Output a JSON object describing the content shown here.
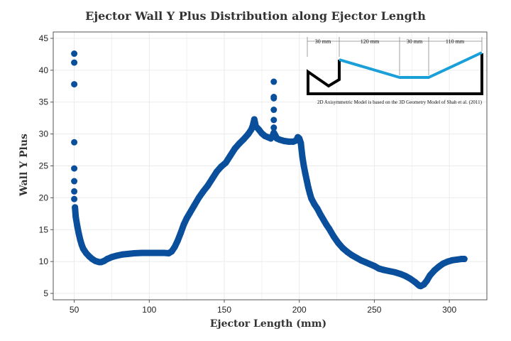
{
  "chart_data": {
    "type": "scatter",
    "title": "Ejector Wall Y Plus Distribution along Ejector Length",
    "xlabel": "Ejector Length (mm)",
    "ylabel": "Wall Y Plus",
    "xlim": [
      36,
      325
    ],
    "ylim": [
      4,
      46
    ],
    "xticks": [
      50,
      100,
      150,
      200,
      250,
      300
    ],
    "yticks": [
      5,
      10,
      15,
      20,
      25,
      30,
      35,
      40,
      45
    ],
    "grid": true,
    "marker_color": "#0a4f9c",
    "series": [
      {
        "points": [
          [
            50,
            42.6
          ],
          [
            50,
            41.2
          ],
          [
            50,
            37.8
          ],
          [
            50,
            28.7
          ],
          [
            50,
            24.6
          ],
          [
            50,
            22.6
          ],
          [
            50,
            21.0
          ],
          [
            50,
            19.8
          ],
          [
            50.5,
            18.5
          ],
          [
            51,
            17.0
          ],
          [
            52,
            15.6
          ],
          [
            53,
            14.4
          ],
          [
            54,
            13.4
          ],
          [
            55,
            12.6
          ],
          [
            56,
            12.0
          ],
          [
            58,
            11.3
          ],
          [
            60,
            10.8
          ],
          [
            62,
            10.4
          ],
          [
            64,
            10.1
          ],
          [
            66,
            9.95
          ],
          [
            67,
            9.9
          ],
          [
            68,
            9.92
          ],
          [
            70,
            10.1
          ],
          [
            72,
            10.4
          ],
          [
            75,
            10.7
          ],
          [
            78,
            10.9
          ],
          [
            82,
            11.1
          ],
          [
            86,
            11.2
          ],
          [
            90,
            11.3
          ],
          [
            95,
            11.35
          ],
          [
            100,
            11.35
          ],
          [
            105,
            11.35
          ],
          [
            110,
            11.35
          ],
          [
            113,
            11.3
          ],
          [
            115,
            11.6
          ],
          [
            117,
            12.3
          ],
          [
            119,
            13.3
          ],
          [
            121,
            14.5
          ],
          [
            123,
            15.8
          ],
          [
            125,
            16.8
          ],
          [
            127,
            17.6
          ],
          [
            130,
            18.8
          ],
          [
            133,
            20.0
          ],
          [
            136,
            21.0
          ],
          [
            139,
            21.9
          ],
          [
            142,
            23.0
          ],
          [
            145,
            24.1
          ],
          [
            148,
            24.9
          ],
          [
            151,
            25.5
          ],
          [
            154,
            26.6
          ],
          [
            157,
            27.7
          ],
          [
            160,
            28.5
          ],
          [
            163,
            29.2
          ],
          [
            166,
            30.0
          ],
          [
            168,
            30.7
          ],
          [
            169,
            31.3
          ],
          [
            170,
            32.3
          ],
          [
            171,
            31.2
          ],
          [
            173,
            30.7
          ],
          [
            175,
            30.1
          ],
          [
            177,
            29.7
          ],
          [
            179,
            29.5
          ],
          [
            181,
            29.3
          ],
          [
            182,
            29.6
          ],
          [
            183,
            30.2
          ],
          [
            183,
            31.0
          ],
          [
            183,
            32.2
          ],
          [
            183,
            33.8
          ],
          [
            183,
            35.6
          ],
          [
            183,
            35.8
          ],
          [
            183,
            38.2
          ],
          [
            184,
            29.8
          ],
          [
            185,
            29.3
          ],
          [
            187,
            29.1
          ],
          [
            190,
            28.9
          ],
          [
            193,
            28.8
          ],
          [
            196,
            28.8
          ],
          [
            198,
            29.0
          ],
          [
            199,
            29.5
          ],
          [
            200,
            29.3
          ],
          [
            201,
            28.6
          ],
          [
            202,
            26.5
          ],
          [
            203,
            25.0
          ],
          [
            204,
            23.8
          ],
          [
            205,
            22.7
          ],
          [
            206,
            21.6
          ],
          [
            207,
            20.7
          ],
          [
            208,
            19.9
          ],
          [
            210,
            19.0
          ],
          [
            212,
            18.3
          ],
          [
            214,
            17.4
          ],
          [
            216,
            16.6
          ],
          [
            218,
            15.8
          ],
          [
            220,
            15.1
          ],
          [
            223,
            13.9
          ],
          [
            226,
            12.9
          ],
          [
            229,
            12.1
          ],
          [
            232,
            11.5
          ],
          [
            235,
            11.0
          ],
          [
            238,
            10.6
          ],
          [
            241,
            10.2
          ],
          [
            244,
            9.9
          ],
          [
            247,
            9.6
          ],
          [
            250,
            9.3
          ],
          [
            253,
            8.9
          ],
          [
            256,
            8.7
          ],
          [
            260,
            8.5
          ],
          [
            264,
            8.3
          ],
          [
            268,
            8.0
          ],
          [
            271,
            7.7
          ],
          [
            274,
            7.3
          ],
          [
            277,
            6.8
          ],
          [
            279,
            6.4
          ],
          [
            280,
            6.2
          ],
          [
            281,
            6.15
          ],
          [
            283,
            6.4
          ],
          [
            285,
            7.0
          ],
          [
            287,
            7.8
          ],
          [
            290,
            8.6
          ],
          [
            293,
            9.2
          ],
          [
            296,
            9.7
          ],
          [
            299,
            10.0
          ],
          [
            302,
            10.2
          ],
          [
            305,
            10.3
          ],
          [
            308,
            10.4
          ],
          [
            310,
            10.4
          ]
        ]
      }
    ]
  },
  "inset": {
    "dimensions": [
      "30 mm",
      "120 mm",
      "30 mm",
      "110 mm"
    ],
    "note": "2D Axisymmetric Model is based on the 3D Geometry Model of Shah et al. (2011)",
    "wall_color": "#1a9fd9",
    "outline_color": "#000000"
  }
}
